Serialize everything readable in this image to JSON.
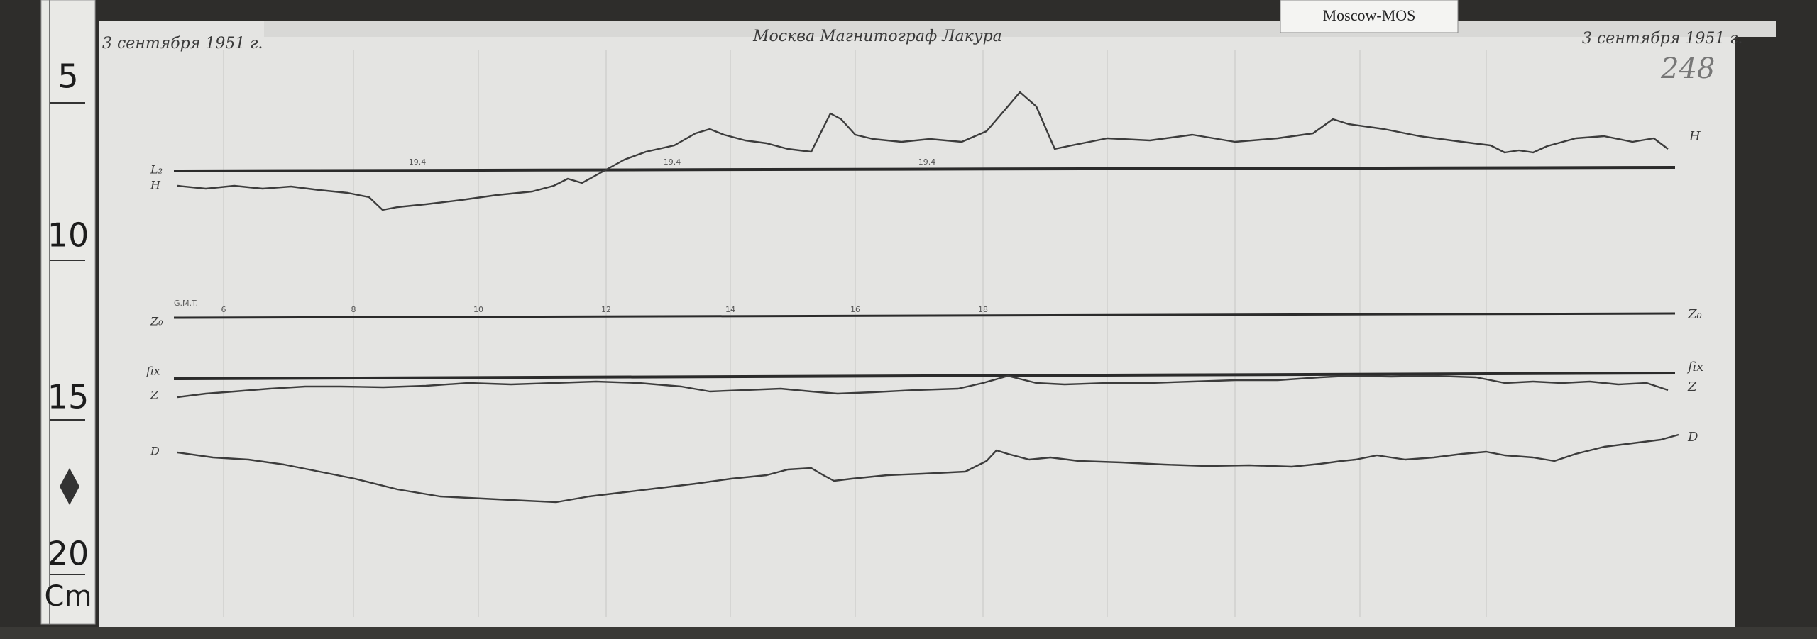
{
  "archive_label": "Moscow-MOS",
  "ruler": {
    "marks": [
      "5",
      "10",
      "15",
      "20"
    ],
    "unit": "Cm"
  },
  "header": {
    "date_left": "3 сентября 1951 г.",
    "title": "Москва Магнитограф Лакура",
    "date_right": "3 сентября 1951 г.",
    "sheet_number": "248"
  },
  "trace_labels": {
    "l2_left": "L₂",
    "h_left": "H",
    "h_right": "H",
    "z0_left": "Z₀",
    "z0_right": "Z₀",
    "fix_left": "fix",
    "fix_right": "fix",
    "z_left": "Z",
    "z_right": "Z",
    "d_left": "D",
    "d_right": "D"
  },
  "time_scale": {
    "label": "G.M.T.",
    "hours": [
      "6",
      "8",
      "10",
      "12",
      "14",
      "16",
      "18"
    ]
  },
  "baseline_notes": [
    "19.4",
    "19.4",
    "19.4"
  ]
}
